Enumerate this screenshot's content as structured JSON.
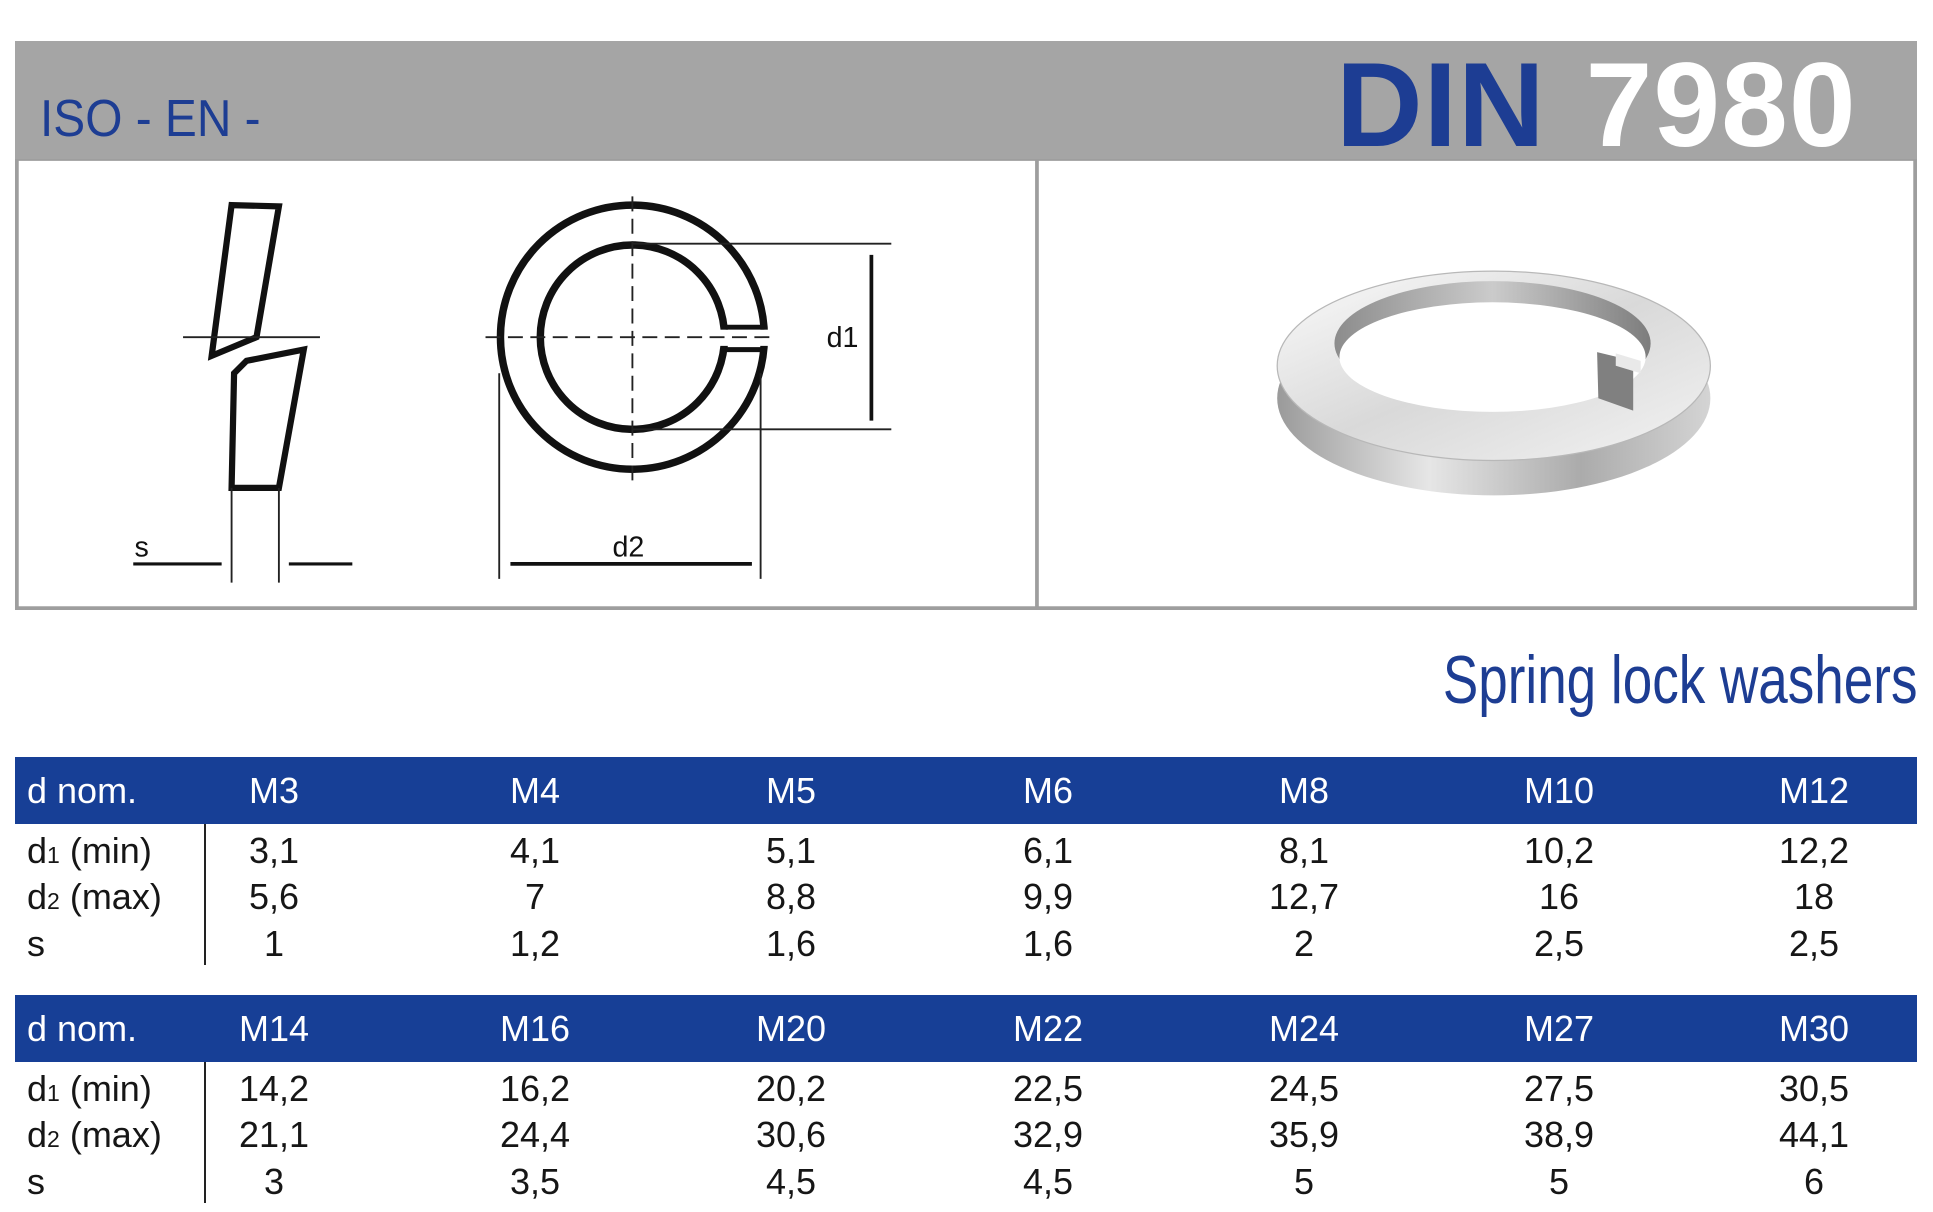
{
  "header": {
    "standard_prefix": "ISO - EN -",
    "din_label": "DIN",
    "din_number": "7980"
  },
  "drawing": {
    "labels": {
      "s": "s",
      "d1": "d1",
      "d2": "d2"
    }
  },
  "product_title": "Spring lock washers",
  "colors": {
    "brand_blue": "#1d3d93",
    "header_gray": "#a5a5a5",
    "table_header_blue": "#173f96"
  },
  "tables": [
    {
      "header": {
        "label": "d nom.",
        "values": [
          "M3",
          "M4",
          "M5",
          "M6",
          "M8",
          "M10",
          "M12"
        ]
      },
      "rows": [
        {
          "label": {
            "base": "d",
            "sub": "1",
            "suffix": " (min)"
          },
          "values": [
            "3,1",
            "4,1",
            "5,1",
            "6,1",
            "8,1",
            "10,2",
            "12,2"
          ]
        },
        {
          "label": {
            "base": "d",
            "sub": "2",
            "suffix": " (max)"
          },
          "values": [
            "5,6",
            "7",
            "8,8",
            "9,9",
            "12,7",
            "16",
            "18"
          ]
        },
        {
          "label": {
            "base": "s",
            "sub": "",
            "suffix": ""
          },
          "values": [
            "1",
            "1,2",
            "1,6",
            "1,6",
            "2",
            "2,5",
            "2,5"
          ]
        }
      ]
    },
    {
      "header": {
        "label": "d nom.",
        "values": [
          "M14",
          "M16",
          "M20",
          "M22",
          "M24",
          "M27",
          "M30"
        ]
      },
      "rows": [
        {
          "label": {
            "base": "d",
            "sub": "1",
            "suffix": " (min)"
          },
          "values": [
            "14,2",
            "16,2",
            "20,2",
            "22,5",
            "24,5",
            "27,5",
            "30,5"
          ]
        },
        {
          "label": {
            "base": "d",
            "sub": "2",
            "suffix": " (max)"
          },
          "values": [
            "21,1",
            "24,4",
            "30,6",
            "32,9",
            "35,9",
            "38,9",
            "44,1"
          ]
        },
        {
          "label": {
            "base": "s",
            "sub": "",
            "suffix": ""
          },
          "values": [
            "3",
            "3,5",
            "4,5",
            "4,5",
            "5",
            "5",
            "6"
          ]
        }
      ]
    }
  ]
}
